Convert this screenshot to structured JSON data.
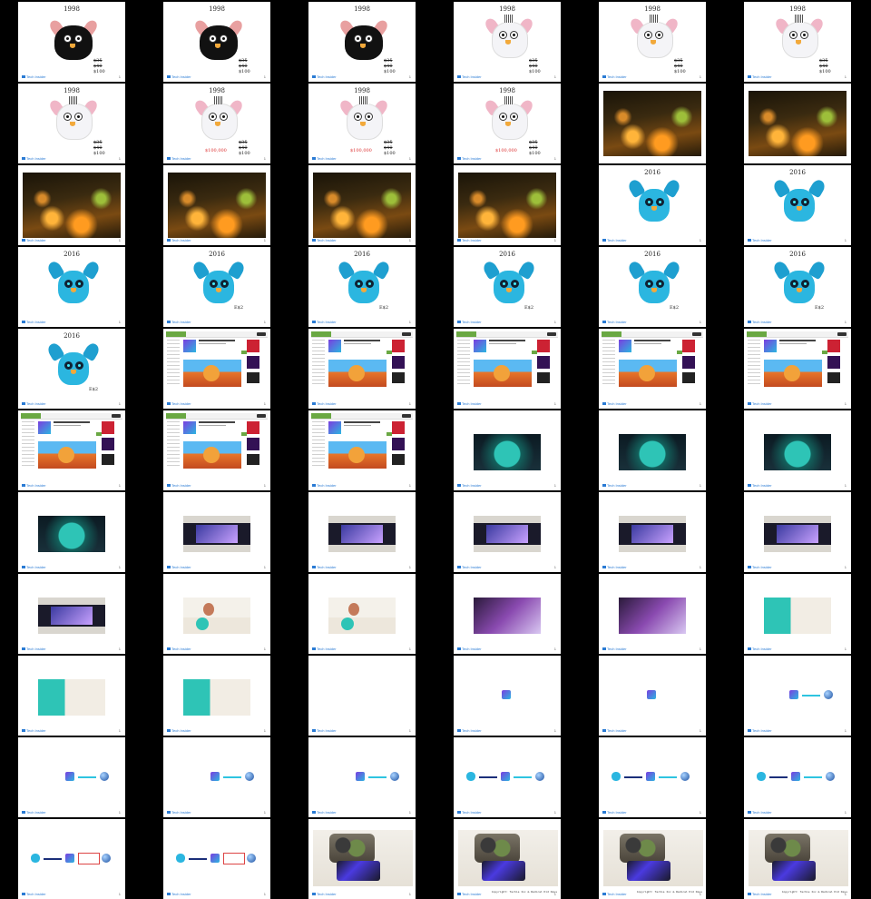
{
  "footer": {
    "logo": "Tech Insider",
    "page": "1"
  },
  "slides": {
    "year_1998": "1998",
    "year_2016": "2016",
    "price_1": "$35",
    "price_2": "$40",
    "price_3": "$100",
    "price_big": "$100,000",
    "price_label_e": "E$2",
    "caption_footage": "Copyright: Techie Inc & Radical Kid Days"
  },
  "colors": {
    "background": "#000000",
    "panel": "#ffffff",
    "accent_blue": "#2a7bd4",
    "furby_blue": "#2bb6e0"
  }
}
